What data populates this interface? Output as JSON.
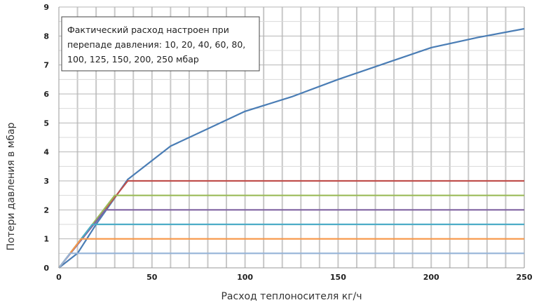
{
  "chart_data": {
    "type": "line",
    "title": "",
    "xlabel": "Расход теплоносителя кг/ч",
    "ylabel": "Потери давления в мбар",
    "xlim": [
      0,
      250
    ],
    "ylim": [
      0,
      9
    ],
    "x_ticks": [
      "0",
      "50",
      "100",
      "150",
      "200",
      "250"
    ],
    "y_ticks": [
      "0",
      "1",
      "2",
      "3",
      "4",
      "5",
      "6",
      "7",
      "8",
      "9"
    ],
    "grid": "on",
    "annotation": {
      "lines": [
        "Фактический расход настроен при",
        "перепаде давления: 10, 20, 40, 60, 80,",
        "100, 125, 150, 200, 250 мбар"
      ]
    },
    "series": [
      {
        "color": "#4a7db5",
        "points": [
          [
            0,
            0
          ],
          [
            10,
            0.5
          ],
          [
            20,
            1.5
          ],
          [
            37,
            3.05
          ],
          [
            60,
            4.2
          ],
          [
            80,
            4.8
          ],
          [
            100,
            5.4
          ],
          [
            125,
            5.9
          ],
          [
            150,
            6.5
          ],
          [
            175,
            7.05
          ],
          [
            200,
            7.6
          ],
          [
            225,
            7.95
          ],
          [
            250,
            8.25
          ]
        ]
      },
      {
        "color": "#c0504d",
        "points": [
          [
            0,
            0
          ],
          [
            37,
            3
          ],
          [
            250,
            3
          ]
        ]
      },
      {
        "color": "#9bbb59",
        "points": [
          [
            0,
            0
          ],
          [
            30,
            2.5
          ],
          [
            250,
            2.5
          ]
        ]
      },
      {
        "color": "#8064a2",
        "points": [
          [
            0,
            0
          ],
          [
            25,
            2
          ],
          [
            250,
            2
          ]
        ]
      },
      {
        "color": "#4bacc6",
        "points": [
          [
            0,
            0
          ],
          [
            18,
            1.5
          ],
          [
            250,
            1.5
          ]
        ]
      },
      {
        "color": "#f79646",
        "points": [
          [
            0,
            0
          ],
          [
            12,
            1
          ],
          [
            250,
            1
          ]
        ]
      },
      {
        "color": "#95b3d7",
        "points": [
          [
            0,
            0
          ],
          [
            6,
            0.5
          ],
          [
            250,
            0.5
          ]
        ]
      }
    ]
  }
}
